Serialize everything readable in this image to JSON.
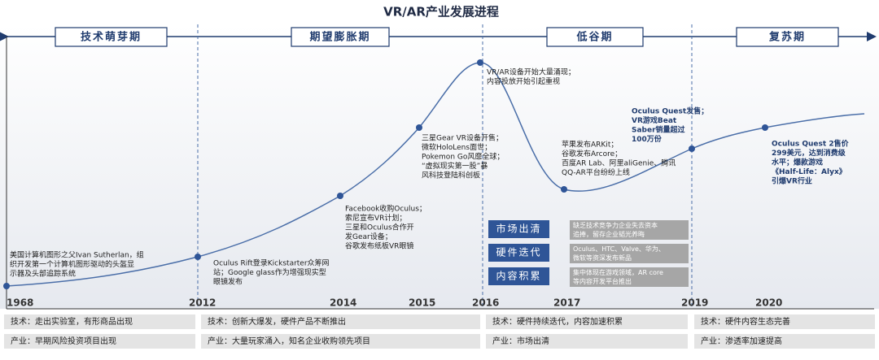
{
  "title": "VR/AR产业发展进程",
  "phases": [
    "技术萌芽期",
    "期望膨胀期",
    "低谷期",
    "复苏期"
  ],
  "years": [
    "1968",
    "2012",
    "2014",
    "2015",
    "2016",
    "2017",
    "2019",
    "2020"
  ],
  "annotations": [
    {
      "lines": [
        "美国计算机图形之父Ivan Sutherlan，组",
        "织开发第一个计算机图形驱动的头盔显",
        "示器及头部追踪系统"
      ]
    },
    {
      "lines": [
        "Oculus Rift登录Kickstarter众筹网",
        "站；Google glass作为增强现实型",
        "眼镜发布"
      ]
    },
    {
      "lines": [
        "Facebook收购Oculus；",
        "索尼宣布VR计划；",
        "三星和Oculus合作开",
        "发Gear设备；",
        "谷歌发布纸板VR眼镜"
      ]
    },
    {
      "lines": [
        "三星Gear VR设备开售；",
        "微软HoloLens面世；",
        "Pokemon Go风靡全球；",
        "“虚拟现实第一股”暴",
        "风科技登陆科创板"
      ]
    },
    {
      "lines": [
        "VR/AR设备开始大量涌现；",
        "内容投放开始引起重视"
      ]
    },
    {
      "lines": [
        "苹果发布ARKit；",
        "谷歌发布Arcore；",
        "百度AR Lab、阿里aliGenie、腾讯",
        "QQ-AR平台纷纷上线"
      ]
    },
    {
      "lines": [
        "Oculus Quest发售；",
        "VR游戏Beat",
        "Saber销量超过",
        "100万份"
      ]
    },
    {
      "lines": [
        "Oculus Quest 2售价",
        "299美元，达到消费级",
        "水平；爆款游戏",
        "《Half-Life：Alyx》",
        "引爆VR行业"
      ]
    }
  ],
  "trough": {
    "labels": [
      "市场出清",
      "硬件迭代",
      "内容积累"
    ],
    "notes": [
      [
        "缺乏技术竞争力企业失去资本",
        "追捧，留存企业韬光养晦"
      ],
      [
        "Oculus、HTC、Valve、华为、",
        "微软等资深发布新品"
      ],
      [
        "集中体现在游戏领域，AR core",
        "等内容开发平台推出"
      ]
    ]
  },
  "tech_row": [
    "技术：走出实验室，有形商品出现",
    "技术：创新大爆发，硬件产品不断推出",
    "技术：硬件持续迭代，内容加速积累",
    "技术：硬件内容生态完善"
  ],
  "industry_row": [
    "产业：早期风险投资项目出现",
    "产业：大量玩家涌入，知名企业收购领先项目",
    "产业：市场出清",
    "产业：渗透率加速提高"
  ]
}
